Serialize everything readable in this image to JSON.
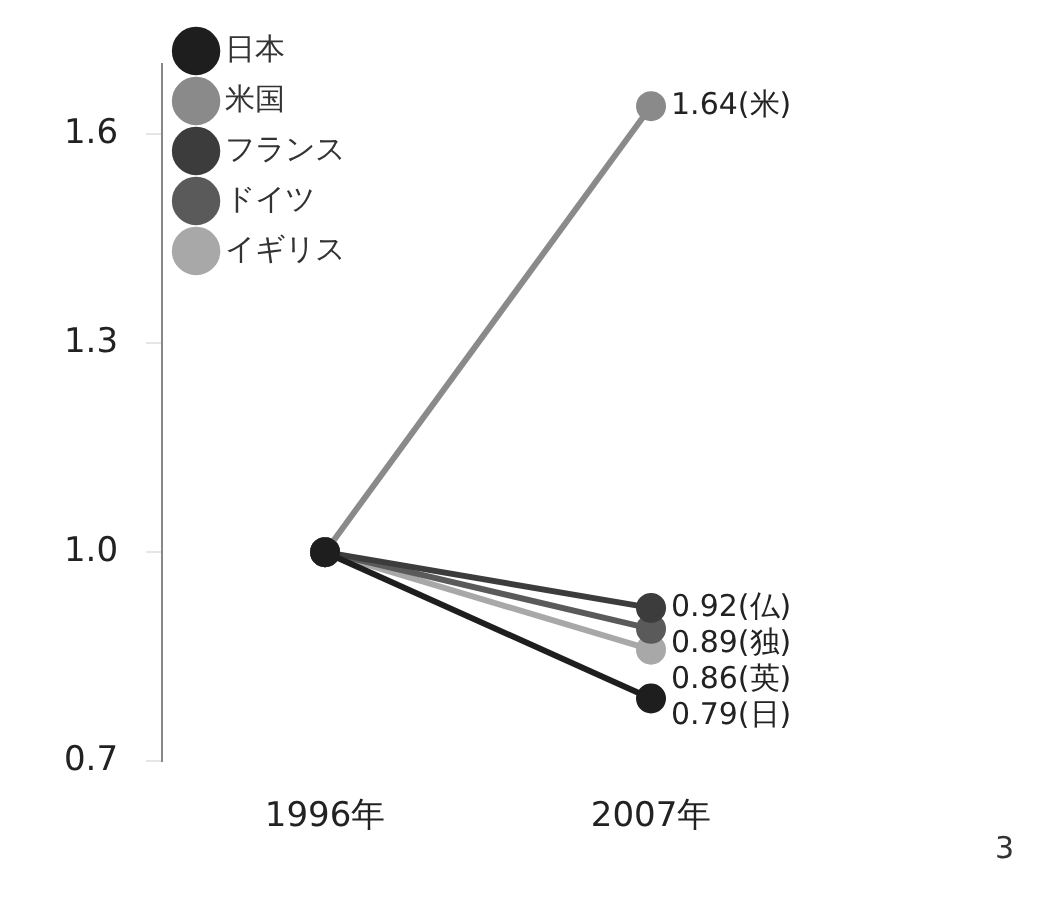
{
  "chart_data": {
    "type": "line",
    "categories": [
      "1996年",
      "2007年"
    ],
    "series": [
      {
        "name": "日本",
        "color": "#1e1e1e",
        "values": [
          1.0,
          0.79
        ],
        "value_labels": [
          null,
          "0.79(日)"
        ]
      },
      {
        "name": "米国",
        "color": "#8a8a8a",
        "values": [
          1.0,
          1.64
        ],
        "value_labels": [
          null,
          "1.64(米)"
        ]
      },
      {
        "name": "フランス",
        "color": "#3c3c3c",
        "values": [
          1.0,
          0.92
        ],
        "value_labels": [
          null,
          "0.92(仏)"
        ]
      },
      {
        "name": "ドイツ",
        "color": "#5a5a5a",
        "values": [
          1.0,
          0.89
        ],
        "value_labels": [
          null,
          "0.89(独)"
        ]
      },
      {
        "name": "イギリス",
        "color": "#a8a8a8",
        "values": [
          1.0,
          0.86
        ],
        "value_labels": [
          null,
          "0.86(英)"
        ]
      }
    ],
    "ylim": [
      0.7,
      1.7
    ],
    "yticks": [
      {
        "value": 0.7,
        "label": "0.7"
      },
      {
        "value": 1.0,
        "label": "1.0"
      },
      {
        "value": 1.3,
        "label": "1.3"
      },
      {
        "value": 1.6,
        "label": "1.6"
      }
    ],
    "grid": false,
    "legend": "top left",
    "marker": "circle",
    "line_style": "solid",
    "annotations": [
      "3"
    ]
  }
}
